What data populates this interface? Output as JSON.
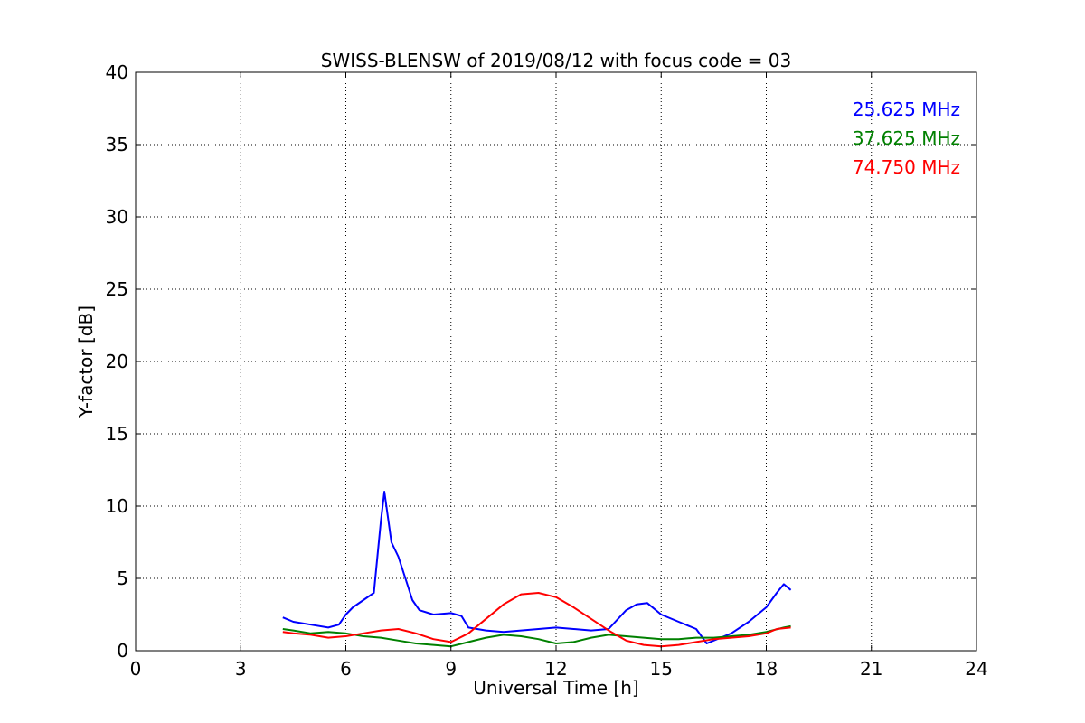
{
  "chart_data": {
    "type": "line",
    "title": "SWISS-BLENSW of 2019/08/12 with focus code = 03",
    "xlabel": "Universal Time [h]",
    "ylabel": "Y-factor [dB]",
    "xlim": [
      0,
      24
    ],
    "ylim": [
      0,
      40
    ],
    "xticks": [
      0,
      3,
      6,
      9,
      12,
      15,
      18,
      21,
      24
    ],
    "yticks": [
      0,
      5,
      10,
      15,
      20,
      25,
      30,
      35,
      40
    ],
    "xtick_labels": [
      "0",
      "3",
      "6",
      "9",
      "12",
      "15",
      "18",
      "21",
      "24"
    ],
    "ytick_labels": [
      "0",
      "5",
      "10",
      "15",
      "20",
      "25",
      "30",
      "35",
      "40"
    ],
    "grid": true,
    "legend_placement": "top-right",
    "series": [
      {
        "name": "25.625 MHz",
        "color": "#0000ff",
        "x": [
          4.2,
          4.5,
          5.0,
          5.5,
          5.8,
          6.0,
          6.2,
          6.5,
          6.8,
          7.0,
          7.1,
          7.3,
          7.5,
          7.7,
          7.9,
          8.1,
          8.5,
          9.0,
          9.3,
          9.5,
          10.0,
          10.5,
          11.0,
          11.5,
          12.0,
          12.5,
          13.0,
          13.5,
          14.0,
          14.3,
          14.6,
          15.0,
          15.5,
          16.0,
          16.3,
          16.6,
          17.0,
          17.5,
          18.0,
          18.3,
          18.5,
          18.7
        ],
        "y": [
          2.3,
          2.0,
          1.8,
          1.6,
          1.8,
          2.5,
          3.0,
          3.5,
          4.0,
          9.0,
          11.0,
          7.5,
          6.5,
          5.0,
          3.5,
          2.8,
          2.5,
          2.6,
          2.4,
          1.6,
          1.4,
          1.3,
          1.4,
          1.5,
          1.6,
          1.5,
          1.4,
          1.5,
          2.8,
          3.2,
          3.3,
          2.5,
          2.0,
          1.5,
          0.5,
          0.8,
          1.2,
          2.0,
          3.0,
          4.0,
          4.6,
          4.2
        ]
      },
      {
        "name": "37.625 MHz",
        "color": "#008000",
        "x": [
          4.2,
          4.5,
          5.0,
          5.5,
          6.0,
          6.5,
          7.0,
          7.5,
          8.0,
          8.5,
          9.0,
          9.5,
          10.0,
          10.5,
          11.0,
          11.5,
          12.0,
          12.5,
          13.0,
          13.5,
          14.0,
          14.5,
          15.0,
          15.5,
          16.0,
          16.5,
          17.0,
          17.5,
          18.0,
          18.5,
          18.7
        ],
        "y": [
          1.5,
          1.4,
          1.2,
          1.3,
          1.2,
          1.0,
          0.9,
          0.7,
          0.5,
          0.4,
          0.3,
          0.6,
          0.9,
          1.1,
          1.0,
          0.8,
          0.5,
          0.6,
          0.9,
          1.1,
          1.0,
          0.9,
          0.8,
          0.8,
          0.9,
          0.9,
          1.0,
          1.1,
          1.3,
          1.6,
          1.7
        ]
      },
      {
        "name": "74.750 MHz",
        "color": "#ff0000",
        "x": [
          4.2,
          4.5,
          5.0,
          5.5,
          6.0,
          6.5,
          7.0,
          7.5,
          8.0,
          8.5,
          9.0,
          9.5,
          10.0,
          10.5,
          11.0,
          11.5,
          12.0,
          12.5,
          13.0,
          13.5,
          14.0,
          14.5,
          15.0,
          15.5,
          16.0,
          16.5,
          17.0,
          17.5,
          18.0,
          18.3,
          18.7
        ],
        "y": [
          1.3,
          1.2,
          1.1,
          0.9,
          1.0,
          1.2,
          1.4,
          1.5,
          1.2,
          0.8,
          0.6,
          1.2,
          2.2,
          3.2,
          3.9,
          4.0,
          3.7,
          3.0,
          2.2,
          1.4,
          0.7,
          0.4,
          0.3,
          0.4,
          0.6,
          0.8,
          0.9,
          1.0,
          1.2,
          1.5,
          1.6
        ]
      }
    ]
  }
}
